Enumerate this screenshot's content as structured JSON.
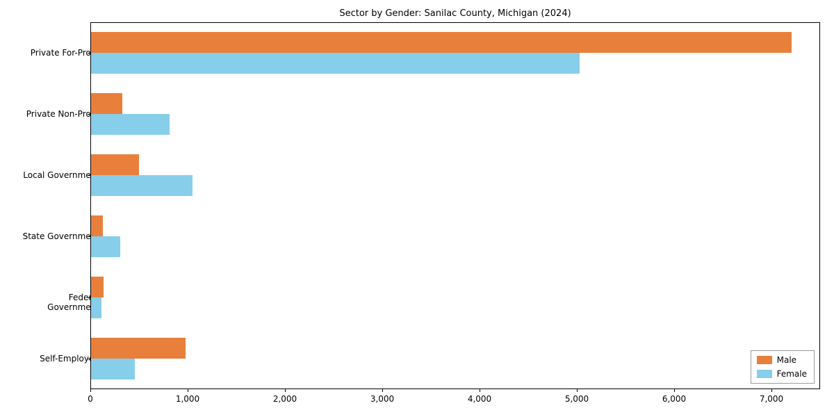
{
  "title": "Sector by Gender: Sanilac County, Michigan (2024)",
  "chart_data": {
    "type": "bar",
    "orientation": "horizontal",
    "title": "Sector by Gender: Sanilac County, Michigan (2024)",
    "categories": [
      "Private For-Profit",
      "Private Non-Profit",
      "Local Government",
      "State Government",
      "Federal Government",
      "Self-Employed"
    ],
    "series": [
      {
        "name": "Male",
        "color": "#e8803c",
        "values": [
          7200,
          320,
          490,
          120,
          130,
          970
        ]
      },
      {
        "name": "Female",
        "color": "#87ceeb",
        "values": [
          5020,
          810,
          1040,
          300,
          110,
          450
        ]
      }
    ],
    "xlabel": "",
    "ylabel": "",
    "xlim": [
      0,
      7500
    ],
    "xticks": [
      0,
      1000,
      2000,
      3000,
      4000,
      5000,
      6000,
      7000
    ],
    "grid": false,
    "legend_position": "lower right"
  },
  "legend": {
    "items": [
      {
        "label": "Male",
        "color": "#e8803c"
      },
      {
        "label": "Female",
        "color": "#87ceeb"
      }
    ]
  }
}
